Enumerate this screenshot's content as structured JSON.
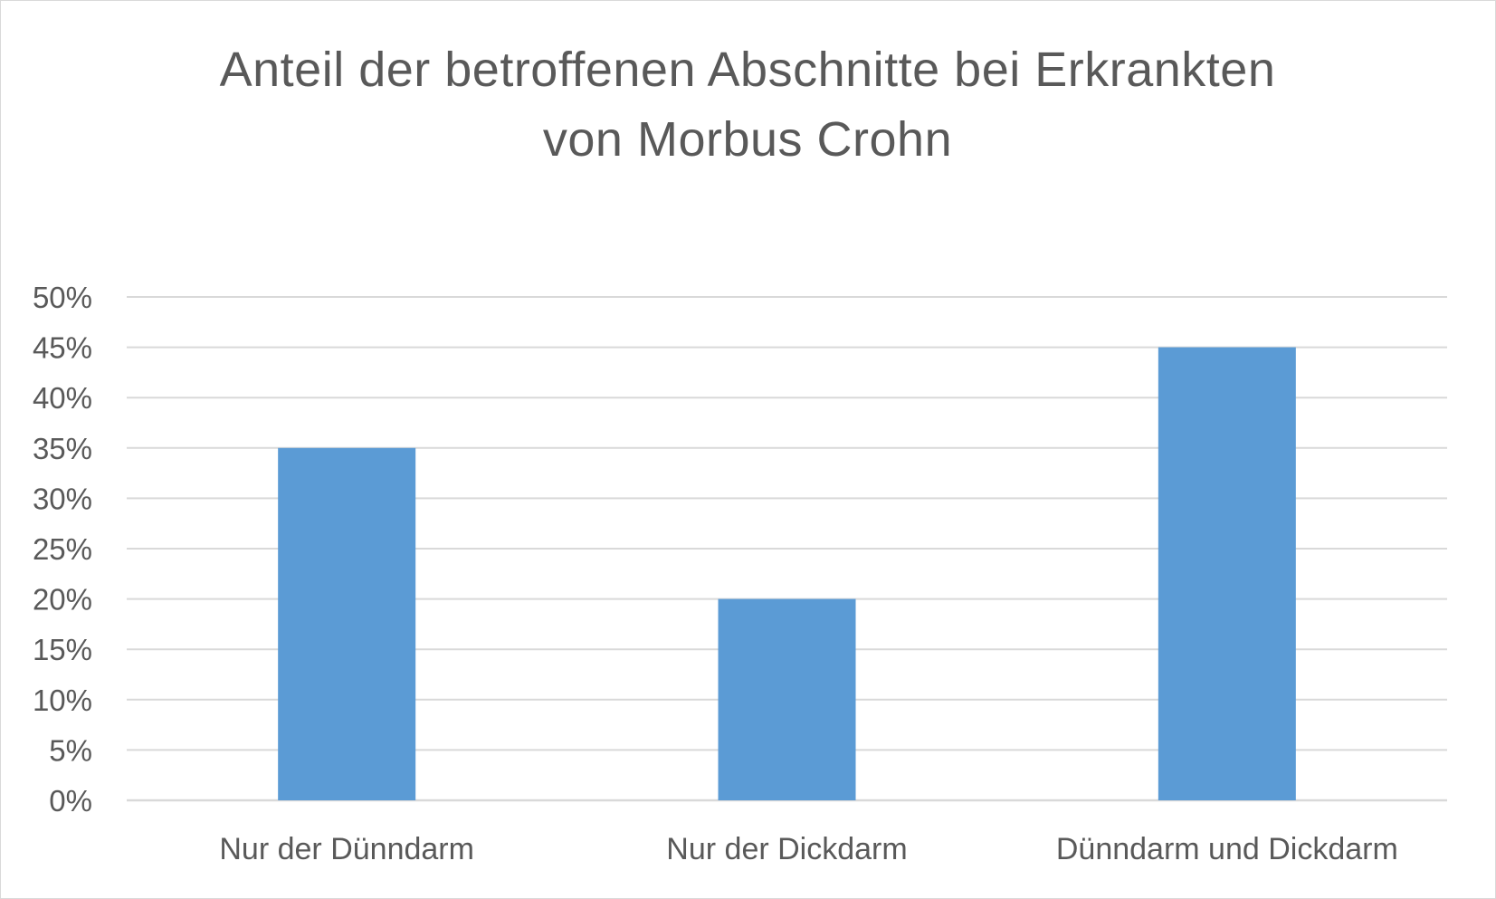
{
  "chart_data": {
    "type": "bar",
    "title_lines": [
      "Anteil der betroffenen Abschnitte bei Erkrankten",
      "von Morbus Crohn"
    ],
    "categories": [
      "Nur der Dünndarm",
      "Nur der Dickdarm",
      "Dünndarm und Dickdarm"
    ],
    "values": [
      35,
      20,
      45
    ],
    "ylim": [
      0,
      50
    ],
    "yticks": [
      "0%",
      "5%",
      "10%",
      "15%",
      "20%",
      "25%",
      "30%",
      "35%",
      "40%",
      "45%",
      "50%"
    ],
    "grid": true,
    "legend": "none",
    "bar_color": "#5B9BD5",
    "grid_color": "#D9D9D9",
    "text_color": "#595959"
  }
}
